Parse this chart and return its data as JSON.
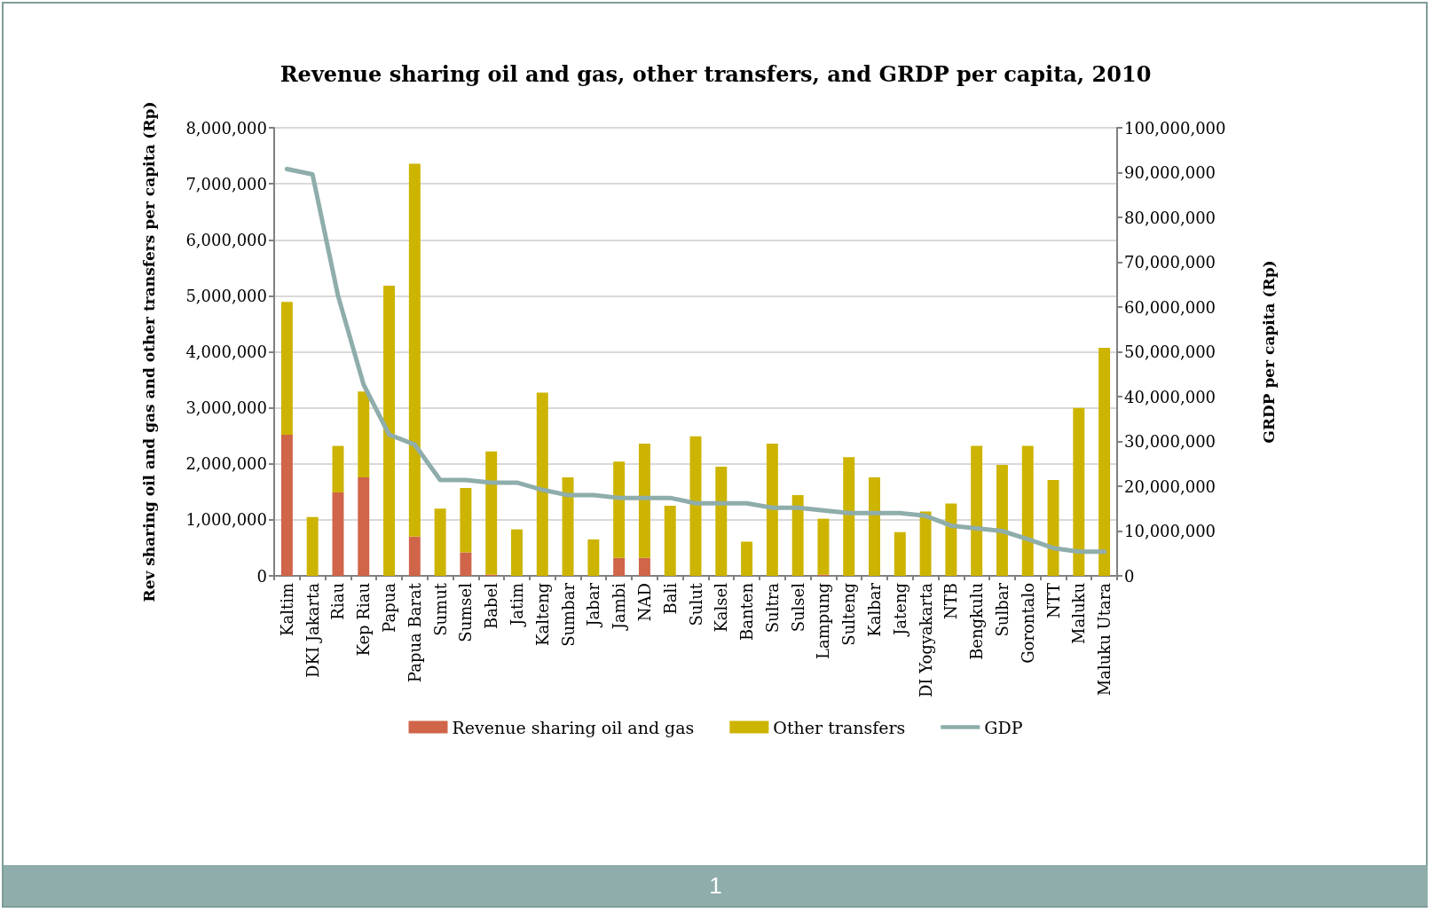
{
  "chart_data": {
    "type": "bar",
    "title": "Revenue sharing oil and gas, other transfers, and GRDP per capita, 2010",
    "ylabel": "Rev sharing oil and gas and other transfers per capita (Rp)",
    "y2label": "GRDP per capita (Rp)",
    "categories": [
      "Kaltim",
      "DKI Jakarta",
      "Riau",
      "Kep Riau",
      "Papua",
      "Papua Barat",
      "Sumut",
      "Sumsel",
      "Babel",
      "Jatim",
      "Kalteng",
      "Sumbar",
      "Jabar",
      "Jambi",
      "NAD",
      "Bali",
      "Sulut",
      "Kalsel",
      "Banten",
      "Sultra",
      "Sulsel",
      "Lampung",
      "Sulteng",
      "Kalbar",
      "Jateng",
      "DI Yogyakarta",
      "NTB",
      "Bengkulu",
      "Sulbar",
      "Gorontalo",
      "NTT",
      "Maluku",
      "Maluku Utara"
    ],
    "stacked": true,
    "series": [
      {
        "name": "Revenue sharing oil and gas",
        "color": "#d0654a",
        "values": [
          2520000,
          0,
          1490000,
          1760000,
          0,
          700000,
          0,
          420000,
          20000,
          0,
          0,
          0,
          0,
          320000,
          320000,
          0,
          0,
          0,
          0,
          0,
          0,
          20000,
          0,
          0,
          0,
          0,
          0,
          0,
          0,
          0,
          0,
          0,
          0
        ]
      },
      {
        "name": "Other transfers",
        "color": "#cdb400",
        "values": [
          2370000,
          1050000,
          830000,
          1530000,
          5180000,
          6660000,
          1200000,
          1150000,
          2200000,
          830000,
          3270000,
          1760000,
          650000,
          1720000,
          2040000,
          1250000,
          2490000,
          1950000,
          610000,
          2360000,
          1440000,
          1000000,
          2120000,
          1760000,
          780000,
          1150000,
          1290000,
          2320000,
          1980000,
          2320000,
          1710000,
          3000000,
          4070000
        ]
      },
      {
        "name": "GDP",
        "type": "line",
        "axis": "y2",
        "color": "#8eadab",
        "values": [
          90800000,
          89600000,
          62500000,
          42700000,
          31500000,
          29300000,
          21400000,
          21400000,
          20800000,
          20800000,
          19200000,
          18000000,
          18000000,
          17400000,
          17400000,
          17400000,
          16200000,
          16200000,
          16200000,
          15200000,
          15200000,
          14600000,
          14000000,
          14000000,
          14000000,
          13400000,
          11200000,
          10600000,
          10000000,
          8200000,
          6200000,
          5400000,
          5400000
        ]
      }
    ],
    "ylim": [
      0,
      8000000
    ],
    "yticks": [
      {
        "value": 0,
        "label": "0"
      },
      {
        "value": 1000000,
        "label": "1,000,000"
      },
      {
        "value": 2000000,
        "label": "2,000,000"
      },
      {
        "value": 3000000,
        "label": "3,000,000"
      },
      {
        "value": 4000000,
        "label": "4,000,000"
      },
      {
        "value": 5000000,
        "label": "5,000,000"
      },
      {
        "value": 6000000,
        "label": "6,000,000"
      },
      {
        "value": 7000000,
        "label": "7,000,000"
      },
      {
        "value": 8000000,
        "label": "8,000,000"
      }
    ],
    "y2lim": [
      0,
      100000000
    ],
    "y2ticks": [
      {
        "value": 0,
        "label": "0"
      },
      {
        "value": 10000000,
        "label": "10,000,000"
      },
      {
        "value": 20000000,
        "label": "20,000,000"
      },
      {
        "value": 30000000,
        "label": "30,000,000"
      },
      {
        "value": 40000000,
        "label": "40,000,000"
      },
      {
        "value": 50000000,
        "label": "50,000,000"
      },
      {
        "value": 60000000,
        "label": "60,000,000"
      },
      {
        "value": 70000000,
        "label": "70,000,000"
      },
      {
        "value": 80000000,
        "label": "80,000,000"
      },
      {
        "value": 90000000,
        "label": "90,000,000"
      },
      {
        "value": 100000000,
        "label": "100,000,000"
      }
    ],
    "grid": "y",
    "legend": "bottom",
    "marker": "none",
    "line_style": "solid",
    "annotations": [
      "1"
    ]
  }
}
